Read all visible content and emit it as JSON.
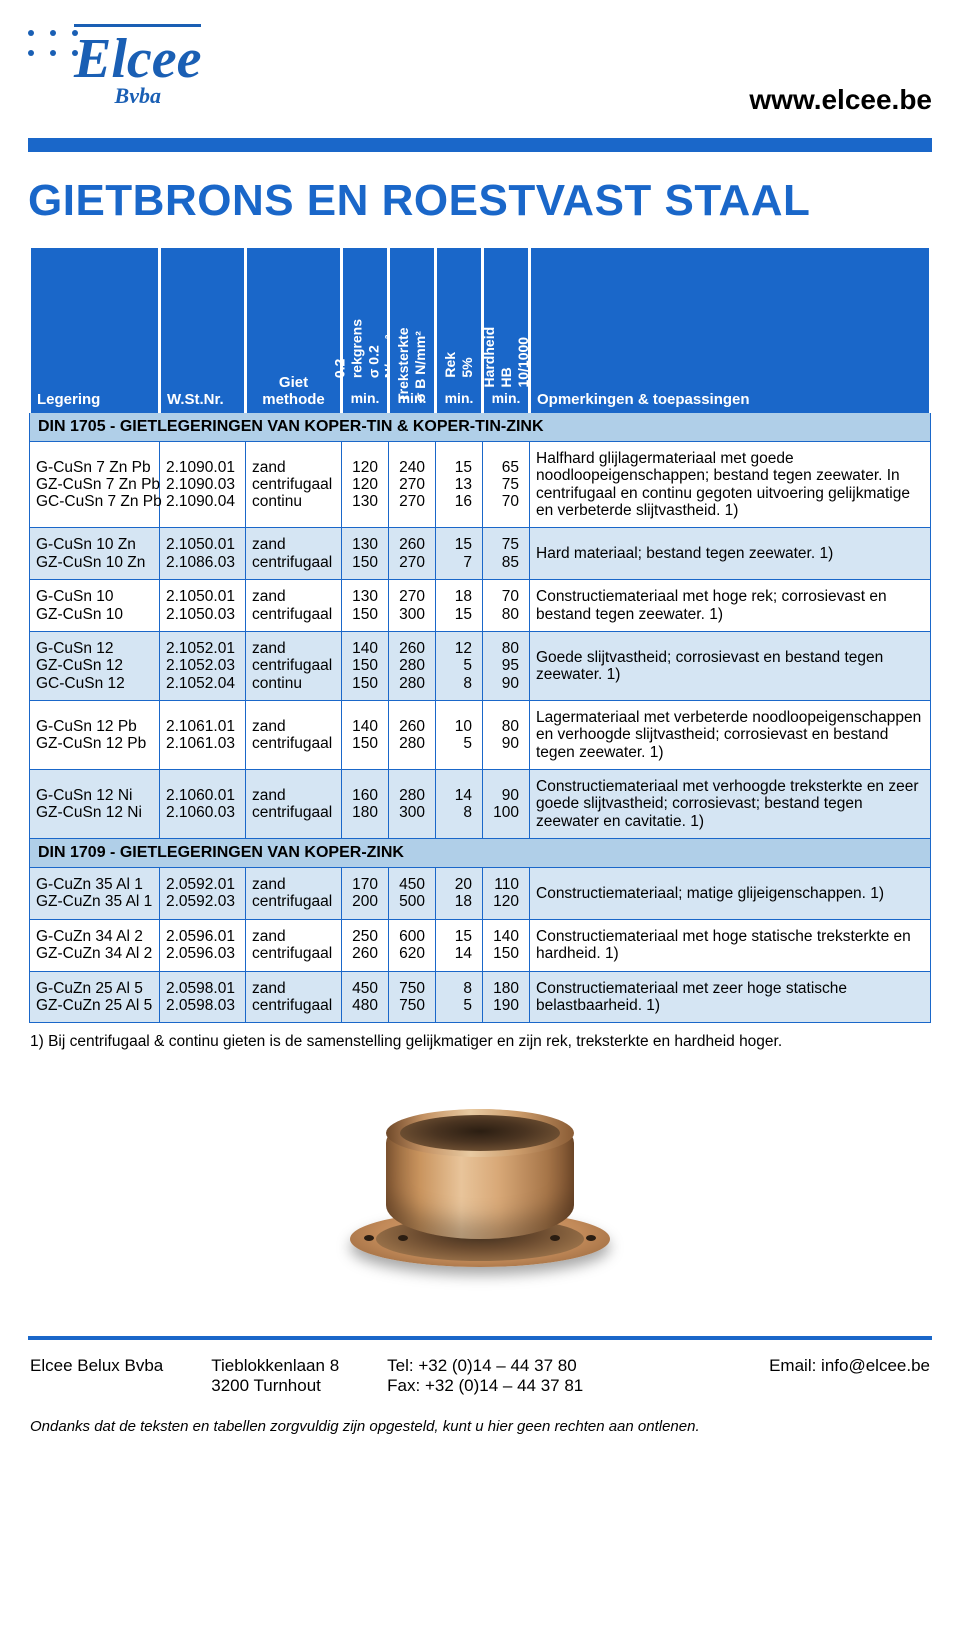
{
  "brand": {
    "name": "Elcee",
    "sub": "Bvba",
    "url": "www.elcee.be"
  },
  "title": "GIETBRONS EN ROESTVAST STAAL",
  "colors": {
    "blue": "#1a67c9",
    "tint": "#d5e5f3",
    "section": "#b0cfe8"
  },
  "headers": {
    "legering": "Legering",
    "wstnr": "W.St.Nr.",
    "giet": "Giet\nmethode",
    "rekgrens": "0.2 rekgrens\nσ 0.2 N/mm²",
    "treksterkte": "Treksterkte\nσ B N/mm²",
    "rek": "Rek\n5%",
    "hardheid": "Hardheid\nHB 10/1000",
    "opm": "Opmerkingen & toepassingen",
    "min": "min."
  },
  "sections": [
    {
      "title": "DIN 1705 - GIETLEGERINGEN VAN KOPER-TIN & KOPER-TIN-ZINK",
      "rows": [
        {
          "tint": false,
          "leg": [
            "G-CuSn 7 Zn Pb",
            "GZ-CuSn 7 Zn Pb",
            "GC-CuSn 7 Zn Pb"
          ],
          "wst": [
            "2.1090.01",
            "2.1090.03",
            "2.1090.04"
          ],
          "giet": [
            "zand",
            "centrifugaal",
            "continu"
          ],
          "c1": [
            "120",
            "120",
            "130"
          ],
          "c2": [
            "240",
            "270",
            "270"
          ],
          "c3": [
            "15",
            "13",
            "16"
          ],
          "c4": [
            "65",
            "75",
            "70"
          ],
          "rem": "Halfhard glijlagermateriaal met goede noodloopeigenschappen; bestand tegen zeewater. In centrifugaal en continu gegoten uitvoering gelijkmatige en verbeterde slijtvastheid. 1)"
        },
        {
          "tint": true,
          "leg": [
            "G-CuSn 10 Zn",
            "GZ-CuSn 10 Zn"
          ],
          "wst": [
            "2.1050.01",
            "2.1086.03"
          ],
          "giet": [
            "zand",
            "centrifugaal"
          ],
          "c1": [
            "130",
            "150"
          ],
          "c2": [
            "260",
            "270"
          ],
          "c3": [
            "15",
            "7"
          ],
          "c4": [
            "75",
            "85"
          ],
          "rem": "Hard materiaal; bestand tegen zeewater. 1)"
        },
        {
          "tint": false,
          "leg": [
            "G-CuSn 10",
            "GZ-CuSn 10"
          ],
          "wst": [
            "2.1050.01",
            "2.1050.03"
          ],
          "giet": [
            "zand",
            "centrifugaal"
          ],
          "c1": [
            "130",
            "150"
          ],
          "c2": [
            "270",
            "300"
          ],
          "c3": [
            "18",
            "15"
          ],
          "c4": [
            "70",
            "80"
          ],
          "rem": "Constructiemateriaal met hoge rek; corrosievast en bestand tegen zeewater. 1)"
        },
        {
          "tint": true,
          "leg": [
            "G-CuSn 12",
            "GZ-CuSn 12",
            "GC-CuSn 12"
          ],
          "wst": [
            "2.1052.01",
            "2.1052.03",
            "2.1052.04"
          ],
          "giet": [
            "zand",
            "centrifugaal",
            "continu"
          ],
          "c1": [
            "140",
            "150",
            "150"
          ],
          "c2": [
            "260",
            "280",
            "280"
          ],
          "c3": [
            "12",
            "5",
            "8"
          ],
          "c4": [
            "80",
            "95",
            "90"
          ],
          "rem": "Goede slijtvastheid; corrosievast en bestand tegen zeewater. 1)"
        },
        {
          "tint": false,
          "leg": [
            "G-CuSn 12 Pb",
            "GZ-CuSn 12 Pb"
          ],
          "wst": [
            "2.1061.01",
            "2.1061.03"
          ],
          "giet": [
            "zand",
            "centrifugaal"
          ],
          "c1": [
            "140",
            "150"
          ],
          "c2": [
            "260",
            "280"
          ],
          "c3": [
            "10",
            "5"
          ],
          "c4": [
            "80",
            "90"
          ],
          "rem": "Lagermateriaal met verbeterde noodloopeigenschappen en verhoogde slijtvastheid; corrosievast en bestand tegen zeewater. 1)"
        },
        {
          "tint": true,
          "leg": [
            "G-CuSn 12 Ni",
            "GZ-CuSn 12 Ni"
          ],
          "wst": [
            "2.1060.01",
            "2.1060.03"
          ],
          "giet": [
            "zand",
            "centrifugaal"
          ],
          "c1": [
            "160",
            "180"
          ],
          "c2": [
            "280",
            "300"
          ],
          "c3": [
            "14",
            "8"
          ],
          "c4": [
            "90",
            "100"
          ],
          "rem": "Constructiemateriaal met verhoogde treksterkte en zeer goede slijtvastheid; corrosievast; bestand tegen zeewater en cavitatie. 1)"
        }
      ]
    },
    {
      "title": "DIN 1709 - GIETLEGERINGEN VAN KOPER-ZINK",
      "rows": [
        {
          "tint": true,
          "leg": [
            "G-CuZn 35 Al 1",
            "GZ-CuZn 35 Al 1"
          ],
          "wst": [
            "2.0592.01",
            "2.0592.03"
          ],
          "giet": [
            "zand",
            "centrifugaal"
          ],
          "c1": [
            "170",
            "200"
          ],
          "c2": [
            "450",
            "500"
          ],
          "c3": [
            "20",
            "18"
          ],
          "c4": [
            "110",
            "120"
          ],
          "rem": "Constructiemateriaal; matige glijeigenschappen. 1)"
        },
        {
          "tint": false,
          "leg": [
            "G-CuZn 34 Al 2",
            "GZ-CuZn 34 Al 2"
          ],
          "wst": [
            "2.0596.01",
            "2.0596.03"
          ],
          "giet": [
            "zand",
            "centrifugaal"
          ],
          "c1": [
            "250",
            "260"
          ],
          "c2": [
            "600",
            "620"
          ],
          "c3": [
            "15",
            "14"
          ],
          "c4": [
            "140",
            "150"
          ],
          "rem": "Constructiemateriaal met hoge statische treksterkte en hardheid. 1)"
        },
        {
          "tint": true,
          "leg": [
            "G-CuZn 25 Al 5",
            "GZ-CuZn 25 Al 5"
          ],
          "wst": [
            "2.0598.01",
            "2.0598.03"
          ],
          "giet": [
            "zand",
            "centrifugaal"
          ],
          "c1": [
            "450",
            "480"
          ],
          "c2": [
            "750",
            "750"
          ],
          "c3": [
            "8",
            "5"
          ],
          "c4": [
            "180",
            "190"
          ],
          "rem": "Constructiemateriaal met zeer hoge statische belastbaarheid. 1)"
        }
      ]
    }
  ],
  "footnote": "1)  Bij centrifugaal & continu gieten is de samenstelling gelijkmatiger en zijn rek, treksterkte en hardheid hoger.",
  "footer": {
    "company": "Elcee Belux Bvba",
    "addr1": "Tieblokkenlaan 8",
    "addr2": "3200 Turnhout",
    "tel": "Tel: +32 (0)14 – 44 37 80",
    "fax": "Fax: +32 (0)14 – 44 37 81",
    "email_label": "Email: info@elcee.be"
  },
  "disclaimer": "Ondanks dat de teksten en tabellen zorgvuldig zijn opgesteld, kunt u hier geen rechten aan ontlenen."
}
